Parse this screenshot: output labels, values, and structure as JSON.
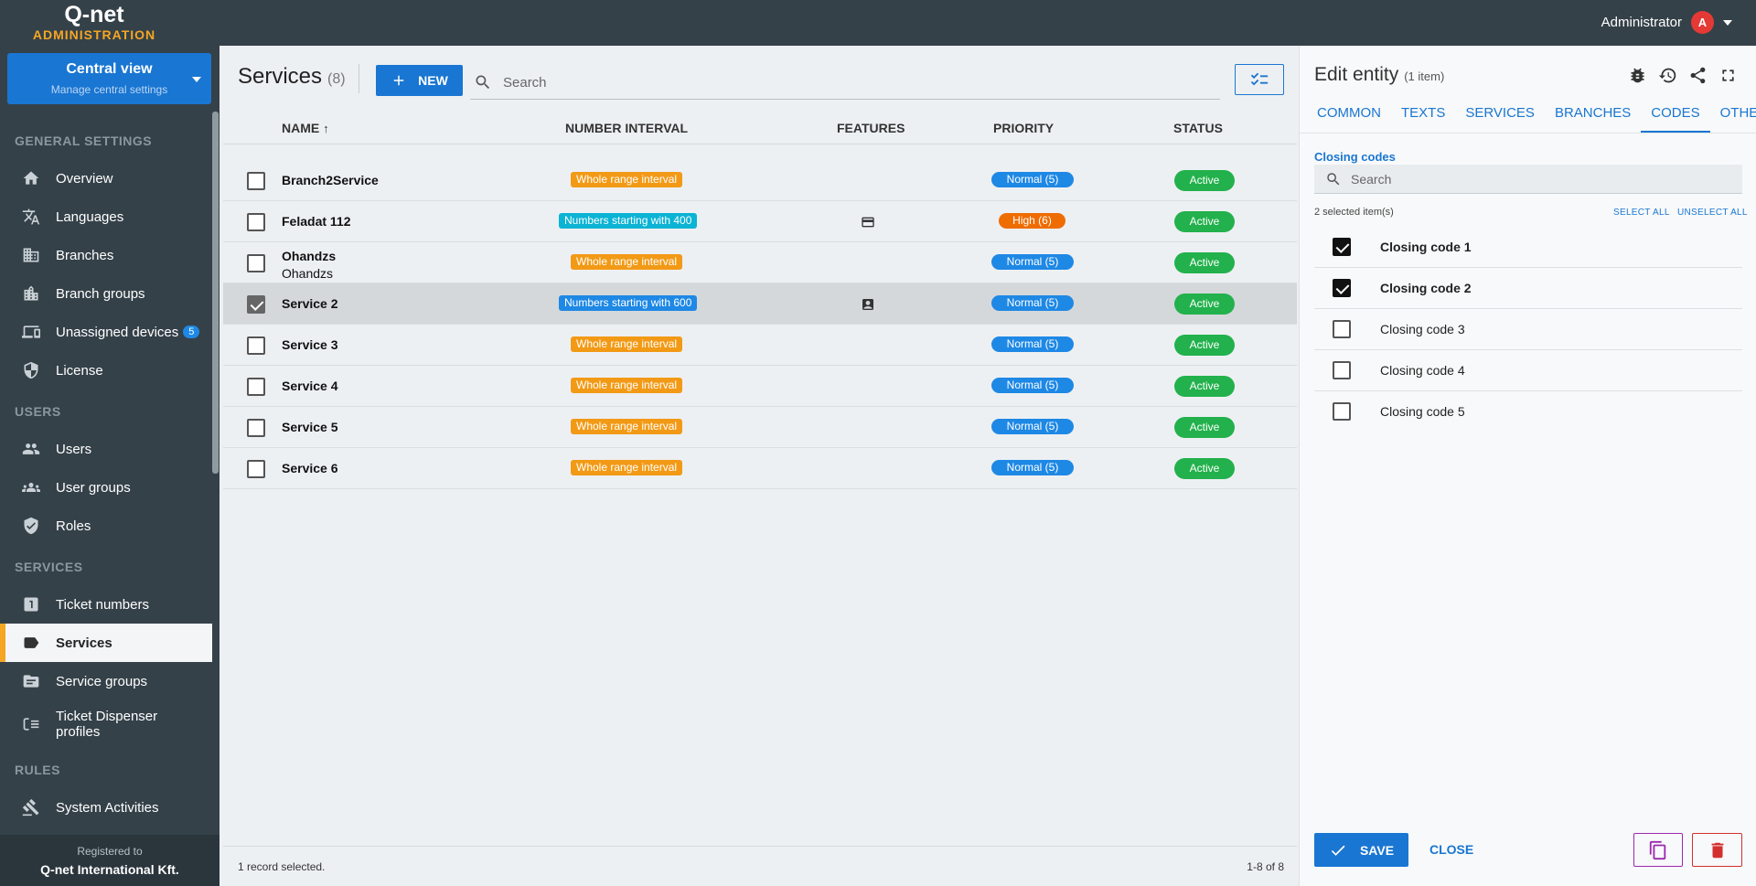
{
  "header": {
    "logo_brand": "Q-net",
    "logo_sub": "ADMINISTRATION",
    "user_name": "Administrator",
    "user_initial": "A"
  },
  "sidebar": {
    "central": {
      "title": "Central view",
      "subtitle": "Manage central settings"
    },
    "sections": {
      "general": "GENERAL SETTINGS",
      "users": "USERS",
      "services": "SERVICES",
      "rules": "RULES"
    },
    "items": {
      "overview": "Overview",
      "languages": "Languages",
      "branches": "Branches",
      "branch_groups": "Branch groups",
      "unassigned_devices": "Unassigned devices",
      "unassigned_badge": "5",
      "license": "License",
      "users": "Users",
      "user_groups": "User groups",
      "roles": "Roles",
      "ticket_numbers": "Ticket numbers",
      "services": "Services",
      "service_groups": "Service groups",
      "ticket_dispenser": "Ticket Dispenser profiles",
      "system_activities": "System Activities"
    },
    "registered": {
      "label": "Registered to",
      "company": "Q-net International Kft."
    }
  },
  "main": {
    "title": "Services",
    "count": "(8)",
    "new_label": "NEW",
    "search_placeholder": "Search",
    "columns": {
      "name": "NAME",
      "interval": "NUMBER INTERVAL",
      "features": "FEATURES",
      "priority": "PRIORITY",
      "status": "STATUS"
    },
    "rows": [
      {
        "name": "Branch2Service",
        "interval": "Whole range interval",
        "priority": "Normal (5)",
        "status": "Active"
      },
      {
        "name": "Feladat 112",
        "interval": "Numbers starting with 400",
        "priority": "High (6)",
        "status": "Active"
      },
      {
        "name": "Ohandzs",
        "sub": "Ohandzs",
        "interval": "Whole range interval",
        "priority": "Normal (5)",
        "status": "Active"
      },
      {
        "name": "Service 2",
        "interval": "Numbers starting with 600",
        "priority": "Normal (5)",
        "status": "Active"
      },
      {
        "name": "Service 3",
        "interval": "Whole range interval",
        "priority": "Normal (5)",
        "status": "Active"
      },
      {
        "name": "Service 4",
        "interval": "Whole range interval",
        "priority": "Normal (5)",
        "status": "Active"
      },
      {
        "name": "Service 5",
        "interval": "Whole range interval",
        "priority": "Normal (5)",
        "status": "Active"
      },
      {
        "name": "Service 6",
        "interval": "Whole range interval",
        "priority": "Normal (5)",
        "status": "Active"
      }
    ],
    "footer_left": "1 record selected.",
    "footer_right": "1-8 of 8"
  },
  "panel": {
    "title": "Edit entity",
    "title_count": "(1 item)",
    "tabs": [
      "COMMON",
      "TEXTS",
      "SERVICES",
      "BRANCHES",
      "CODES",
      "OTHERS"
    ],
    "codes_heading": "Closing codes",
    "search_placeholder": "Search",
    "selected_info": "2 selected item(s)",
    "select_all": "SELECT ALL",
    "unselect_all": "UNSELECT ALL",
    "codes": [
      "Closing code 1",
      "Closing code 2",
      "Closing code 3",
      "Closing code 4",
      "Closing code 5"
    ],
    "save_label": "SAVE",
    "close_label": "CLOSE"
  },
  "colors": {
    "topbar": "#354149",
    "accent": "#1976d2",
    "highlight": "#f5a623",
    "active_status": "#22b14c"
  }
}
